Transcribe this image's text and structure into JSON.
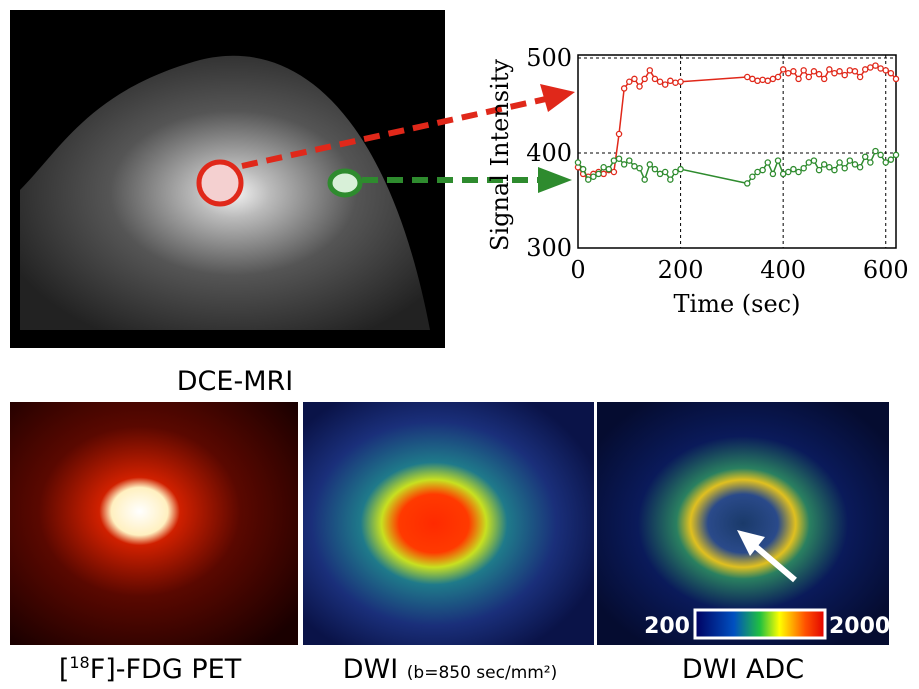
{
  "chart_data": {
    "type": "line",
    "xlabel": "Time (sec)",
    "ylabel": "Signal Intensity",
    "x": [
      0,
      10,
      20,
      30,
      40,
      50,
      60,
      70,
      80,
      90,
      100,
      110,
      120,
      130,
      140,
      150,
      160,
      170,
      180,
      190,
      200,
      330,
      340,
      350,
      360,
      370,
      380,
      390,
      400,
      410,
      420,
      430,
      440,
      450,
      460,
      470,
      480,
      490,
      500,
      510,
      520,
      530,
      540,
      550,
      560,
      570,
      580,
      590,
      600,
      610,
      620
    ],
    "series": [
      {
        "color": "#e0281a",
        "values": [
          385,
          378,
          375,
          378,
          380,
          378,
          382,
          380,
          420,
          468,
          475,
          478,
          470,
          478,
          487,
          478,
          475,
          472,
          476,
          474,
          475,
          480,
          478,
          476,
          477,
          476,
          478,
          480,
          488,
          484,
          486,
          478,
          487,
          480,
          486,
          483,
          478,
          488,
          484,
          486,
          482,
          487,
          486,
          480,
          488,
          490,
          492,
          489,
          487,
          484,
          478
        ]
      },
      {
        "color": "#2e8b2e",
        "values": [
          390,
          383,
          372,
          375,
          378,
          385,
          383,
          392,
          394,
          388,
          392,
          386,
          384,
          372,
          388,
          383,
          378,
          380,
          372,
          380,
          383,
          368,
          375,
          380,
          382,
          390,
          378,
          392,
          378,
          380,
          383,
          380,
          384,
          390,
          392,
          382,
          388,
          385,
          382,
          390,
          384,
          392,
          388,
          385,
          396,
          390,
          402,
          398,
          390,
          393,
          398
        ]
      }
    ],
    "xlim": [
      0,
      620
    ],
    "ylim": [
      300,
      500
    ],
    "xticks": [
      0,
      200,
      400,
      600
    ],
    "yticks": [
      300,
      400,
      500
    ],
    "grid": true
  },
  "panels": {
    "dce_label": "DCE-MRI",
    "pet_label": {
      "pre": "[",
      "sup": "18",
      "post": "F]-FDG PET"
    },
    "dwi_label": {
      "main": "DWI",
      "small": "(b=850 sec/mm²)"
    },
    "adc_label": "DWI ADC",
    "colorbar": {
      "min": 200,
      "max": 2000
    }
  }
}
